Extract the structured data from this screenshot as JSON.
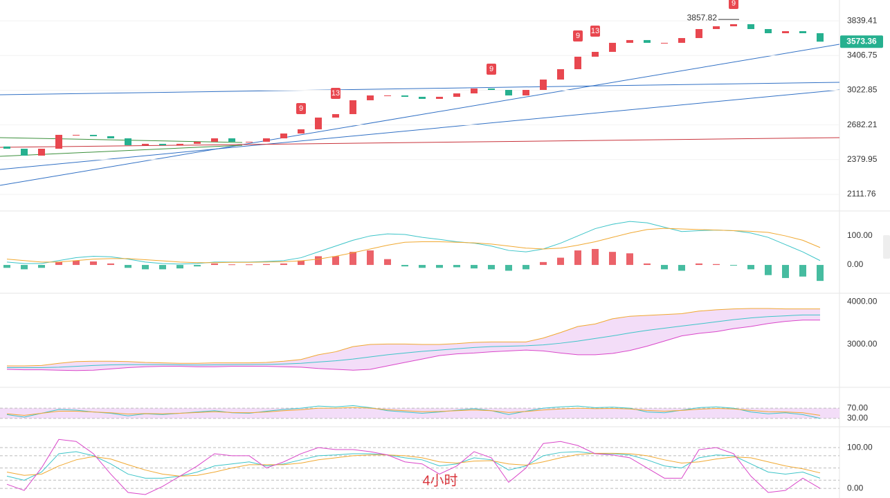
{
  "chart_data": [
    {
      "type": "candlestick",
      "log": true,
      "grid": true,
      "up_color": "#e8474f",
      "down_color": "#26b08f",
      "ylim": [
        2018,
        4125
      ],
      "yticks": [
        3839.41,
        3406.75,
        3022.85,
        2682.21,
        2379.95,
        2111.76
      ],
      "open": [
        2490,
        2471,
        2413,
        2471,
        2592,
        2592,
        2580,
        2561,
        2501,
        2513,
        2501,
        2513,
        2531,
        2561,
        2531,
        2531,
        2561,
        2604,
        2642,
        2751,
        2784,
        2920,
        2969,
        2969,
        2955,
        2934,
        2955,
        2990,
        3041,
        3026,
        2969,
        3026,
        3136,
        3250,
        3393,
        3450,
        3559,
        3593,
        3559,
        3559,
        3618,
        3732,
        3768,
        3795,
        3732,
        3679,
        3705,
        3679
      ],
      "close": [
        2471,
        2413,
        2471,
        2592,
        2592,
        2580,
        2561,
        2501,
        2513,
        2501,
        2513,
        2531,
        2561,
        2531,
        2531,
        2561,
        2604,
        2642,
        2751,
        2784,
        2920,
        2969,
        2969,
        2955,
        2934,
        2955,
        2990,
        3041,
        3026,
        2969,
        3026,
        3136,
        3250,
        3393,
        3450,
        3559,
        3593,
        3559,
        3559,
        3618,
        3732,
        3768,
        3795,
        3732,
        3679,
        3705,
        3679,
        3573.36
      ],
      "annotations": [
        {
          "text": "9",
          "index": 17
        },
        {
          "text": "13",
          "index": 19
        },
        {
          "text": "9",
          "index": 28
        },
        {
          "text": "9",
          "index": 33
        },
        {
          "text": "13",
          "index": 34
        },
        {
          "text": "9",
          "index": 42
        }
      ],
      "high_label": {
        "value": 3857.82,
        "index": 42
      }
    },
    {
      "type": "macd",
      "ylim": [
        -88,
        174
      ],
      "yticks": [
        {
          "value": 100,
          "label": "100.00"
        },
        {
          "value": 0,
          "label": "0.00"
        }
      ],
      "histogram": {
        "up_color": "#e8474f",
        "down_color": "#26b08f",
        "values": [
          -10,
          -15,
          -10,
          10,
          15,
          12,
          5,
          -10,
          -15,
          -15,
          -12,
          -5,
          5,
          2,
          2,
          3,
          5,
          15,
          30,
          30,
          45,
          50,
          20,
          -5,
          -10,
          -10,
          -8,
          -12,
          -15,
          -20,
          -15,
          10,
          25,
          50,
          55,
          45,
          40,
          5,
          -15,
          -20,
          5,
          3,
          -2,
          -15,
          -35,
          -45,
          -40,
          -55
        ]
      },
      "series": [
        {
          "color": "#3cc4c8",
          "values": [
            10,
            5,
            5,
            15,
            25,
            30,
            28,
            20,
            10,
            5,
            3,
            5,
            10,
            10,
            10,
            12,
            15,
            25,
            45,
            65,
            85,
            100,
            107,
            105,
            95,
            88,
            80,
            75,
            65,
            50,
            45,
            55,
            75,
            100,
            125,
            140,
            150,
            145,
            130,
            115,
            118,
            120,
            118,
            110,
            95,
            70,
            45,
            15
          ]
        },
        {
          "color": "#f0a830",
          "values": [
            20,
            15,
            10,
            10,
            15,
            20,
            22,
            22,
            18,
            14,
            10,
            8,
            8,
            9,
            9,
            10,
            11,
            14,
            20,
            30,
            42,
            55,
            68,
            78,
            80,
            80,
            78,
            76,
            72,
            65,
            58,
            55,
            58,
            68,
            80,
            95,
            110,
            122,
            126,
            124,
            122,
            120,
            118,
            116,
            112,
            100,
            85,
            60
          ]
        }
      ]
    },
    {
      "type": "band",
      "fill": "#f3ddf8",
      "ylim": [
        2080,
        4180
      ],
      "yticks": [
        {
          "value": 4000,
          "label": "4000.00"
        },
        {
          "value": 3000,
          "label": "3000.00"
        }
      ],
      "series": [
        {
          "color": "#f0a830",
          "values": [
            2500,
            2500,
            2510,
            2560,
            2600,
            2610,
            2610,
            2600,
            2580,
            2570,
            2560,
            2560,
            2570,
            2570,
            2570,
            2580,
            2610,
            2650,
            2760,
            2830,
            2950,
            3000,
            3010,
            3010,
            3000,
            3000,
            3020,
            3050,
            3060,
            3060,
            3060,
            3150,
            3280,
            3420,
            3480,
            3600,
            3660,
            3680,
            3700,
            3720,
            3780,
            3810,
            3830,
            3840,
            3840,
            3830,
            3830,
            3830
          ]
        },
        {
          "color": "#3cc4c8",
          "values": [
            2460,
            2460,
            2460,
            2470,
            2490,
            2510,
            2525,
            2530,
            2530,
            2530,
            2525,
            2520,
            2525,
            2528,
            2530,
            2535,
            2545,
            2560,
            2590,
            2620,
            2660,
            2710,
            2760,
            2800,
            2840,
            2870,
            2900,
            2930,
            2950,
            2960,
            2970,
            2990,
            3030,
            3080,
            3140,
            3200,
            3270,
            3330,
            3380,
            3430,
            3480,
            3530,
            3580,
            3620,
            3650,
            3670,
            3690,
            3690
          ]
        },
        {
          "color": "#d946c9",
          "values": [
            2420,
            2410,
            2410,
            2400,
            2390,
            2400,
            2430,
            2460,
            2480,
            2490,
            2490,
            2480,
            2480,
            2490,
            2490,
            2490,
            2480,
            2470,
            2440,
            2420,
            2400,
            2420,
            2500,
            2580,
            2660,
            2740,
            2780,
            2800,
            2830,
            2850,
            2870,
            2850,
            2800,
            2760,
            2760,
            2790,
            2860,
            2960,
            3080,
            3200,
            3260,
            3300,
            3370,
            3420,
            3490,
            3540,
            3570,
            3570
          ]
        }
      ]
    },
    {
      "type": "line",
      "band_fill": "#f3ddf8",
      "ylim": [
        0,
        100
      ],
      "yticks": [
        {
          "value": 70,
          "label": "70.00"
        },
        {
          "value": 30,
          "label": "30.00"
        }
      ],
      "series": [
        {
          "color": "#3cc4c8",
          "values": [
            45,
            35,
            50,
            65,
            62,
            55,
            50,
            40,
            48,
            45,
            50,
            55,
            60,
            52,
            50,
            58,
            65,
            70,
            78,
            75,
            80,
            72,
            60,
            55,
            50,
            55,
            62,
            68,
            60,
            45,
            58,
            70,
            75,
            78,
            72,
            74,
            70,
            55,
            52,
            62,
            72,
            75,
            70,
            55,
            48,
            52,
            45,
            30
          ]
        },
        {
          "color": "#f0a830",
          "values": [
            48,
            42,
            50,
            58,
            58,
            55,
            52,
            47,
            49,
            48,
            50,
            53,
            56,
            53,
            52,
            55,
            60,
            64,
            70,
            70,
            73,
            70,
            64,
            60,
            56,
            57,
            60,
            63,
            60,
            53,
            57,
            63,
            67,
            70,
            68,
            69,
            67,
            61,
            58,
            61,
            66,
            69,
            67,
            61,
            56,
            55,
            52,
            42
          ]
        }
      ]
    },
    {
      "type": "line",
      "guides": [
        80,
        50,
        20
      ],
      "ylim": [
        -10,
        129
      ],
      "yticks": [
        {
          "value": 100,
          "label": "100.00"
        },
        {
          "value": 0,
          "label": "0.00"
        }
      ],
      "series": [
        {
          "color": "#3cc4c8",
          "values": [
            30,
            20,
            40,
            85,
            90,
            80,
            60,
            35,
            25,
            25,
            30,
            40,
            55,
            60,
            65,
            55,
            60,
            70,
            80,
            82,
            85,
            85,
            82,
            75,
            70,
            55,
            60,
            75,
            70,
            45,
            55,
            80,
            88,
            90,
            85,
            85,
            82,
            70,
            55,
            50,
            75,
            82,
            80,
            60,
            40,
            35,
            40,
            25
          ]
        },
        {
          "color": "#f0a830",
          "values": [
            40,
            32,
            35,
            55,
            70,
            78,
            72,
            58,
            45,
            35,
            30,
            32,
            40,
            50,
            58,
            58,
            58,
            62,
            70,
            75,
            80,
            82,
            82,
            80,
            75,
            65,
            62,
            67,
            68,
            60,
            57,
            65,
            75,
            83,
            86,
            86,
            85,
            80,
            70,
            62,
            65,
            72,
            77,
            75,
            65,
            55,
            48,
            38
          ]
        },
        {
          "color": "#d946c9",
          "values": [
            10,
            -5,
            50,
            120,
            115,
            85,
            35,
            -10,
            -15,
            5,
            30,
            55,
            85,
            80,
            80,
            50,
            65,
            85,
            100,
            95,
            95,
            90,
            82,
            65,
            60,
            35,
            55,
            90,
            75,
            15,
            50,
            110,
            115,
            105,
            85,
            82,
            75,
            50,
            25,
            25,
            95,
            100,
            85,
            30,
            -10,
            -5,
            25,
            0
          ]
        }
      ]
    }
  ],
  "watermark": "4小时"
}
